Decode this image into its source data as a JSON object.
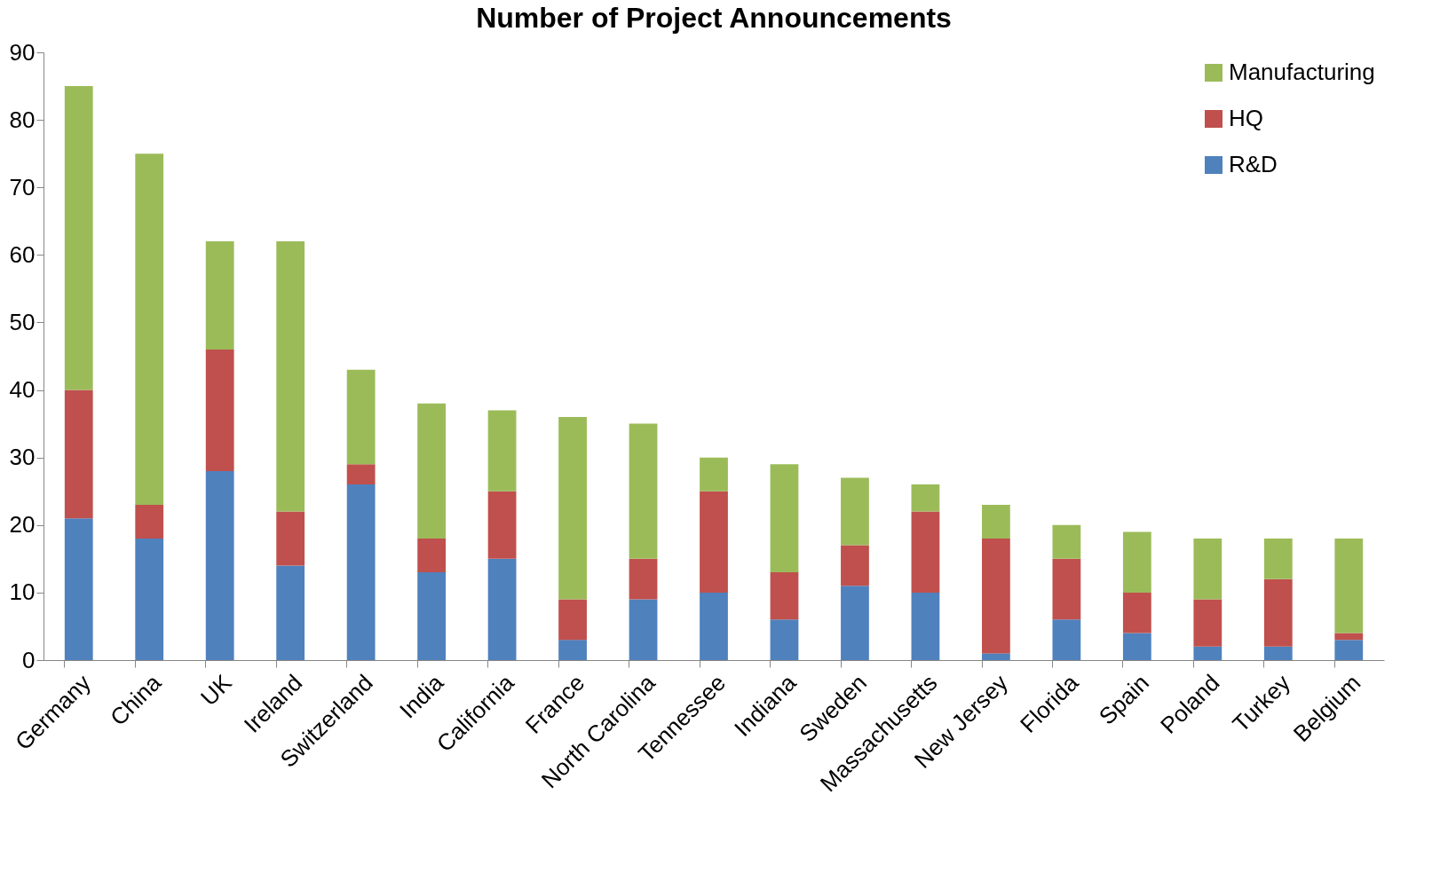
{
  "chart_data": {
    "type": "bar",
    "title": "Number of Project Announcements",
    "categories": [
      "Germany",
      "China",
      "UK",
      "Ireland",
      "Switzerland",
      "India",
      "California",
      "France",
      "North Carolina",
      "Tennessee",
      "Indiana",
      "Sweden",
      "Massachusetts",
      "New Jersey",
      "Florida",
      "Spain",
      "Poland",
      "Turkey",
      "Belgium"
    ],
    "series": [
      {
        "name": "R&D",
        "color": "#4f81bd",
        "values": [
          21,
          18,
          28,
          14,
          26,
          13,
          15,
          3,
          9,
          10,
          6,
          11,
          10,
          1,
          6,
          4,
          2,
          2,
          3
        ]
      },
      {
        "name": "HQ",
        "color": "#c0504d",
        "values": [
          19,
          5,
          18,
          8,
          3,
          5,
          10,
          6,
          6,
          15,
          7,
          6,
          12,
          17,
          9,
          6,
          7,
          10,
          1
        ]
      },
      {
        "name": "Manufacturing",
        "color": "#9bbb59",
        "values": [
          45,
          52,
          16,
          40,
          14,
          20,
          12,
          27,
          20,
          5,
          16,
          10,
          4,
          5,
          5,
          9,
          9,
          6,
          14
        ]
      }
    ],
    "stacked": true,
    "ylim": [
      0,
      90
    ],
    "yticks": [
      0,
      10,
      20,
      30,
      40,
      50,
      60,
      70,
      80,
      90
    ],
    "grid": false,
    "legend": "top right"
  }
}
